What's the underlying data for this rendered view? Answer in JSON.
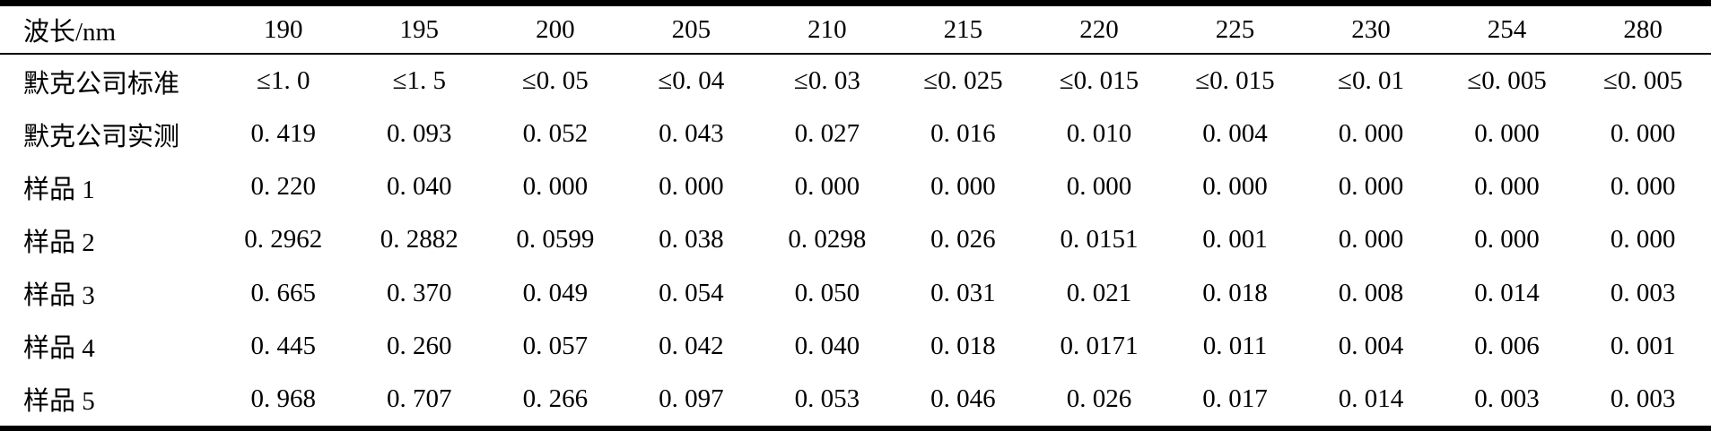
{
  "colors": {
    "background": "#ffffff",
    "text": "#000000",
    "rule": "#000000"
  },
  "table": {
    "header": {
      "label": "波长/nm",
      "wavelengths": [
        "190",
        "195",
        "200",
        "205",
        "210",
        "215",
        "220",
        "225",
        "230",
        "254",
        "280"
      ]
    },
    "rows": [
      {
        "label": "默克公司标准",
        "values": [
          "≤1. 0",
          "≤1. 5",
          "≤0. 05",
          "≤0. 04",
          "≤0. 03",
          "≤0. 025",
          "≤0. 015",
          "≤0. 015",
          "≤0. 01",
          "≤0. 005",
          "≤0. 005"
        ]
      },
      {
        "label": "默克公司实测",
        "values": [
          "0. 419",
          "0. 093",
          "0. 052",
          "0. 043",
          "0. 027",
          "0. 016",
          "0. 010",
          "0. 004",
          "0. 000",
          "0. 000",
          "0. 000"
        ]
      },
      {
        "label": "样品 1",
        "values": [
          "0. 220",
          "0. 040",
          "0. 000",
          "0. 000",
          "0. 000",
          "0. 000",
          "0. 000",
          "0. 000",
          "0. 000",
          "0. 000",
          "0. 000"
        ]
      },
      {
        "label": "样品 2",
        "values": [
          "0. 2962",
          "0. 2882",
          "0. 0599",
          "0. 038",
          "0. 0298",
          "0. 026",
          "0. 0151",
          "0. 001",
          "0. 000",
          "0. 000",
          "0. 000"
        ]
      },
      {
        "label": "样品 3",
        "values": [
          "0. 665",
          "0. 370",
          "0. 049",
          "0. 054",
          "0. 050",
          "0. 031",
          "0. 021",
          "0. 018",
          "0. 008",
          "0. 014",
          "0. 003"
        ]
      },
      {
        "label": "样品 4",
        "values": [
          "0. 445",
          "0. 260",
          "0. 057",
          "0. 042",
          "0. 040",
          "0. 018",
          "0. 0171",
          "0. 011",
          "0. 004",
          "0. 006",
          "0. 001"
        ]
      },
      {
        "label": "样品 5",
        "values": [
          "0. 968",
          "0. 707",
          "0. 266",
          "0. 097",
          "0. 053",
          "0. 046",
          "0. 026",
          "0. 017",
          "0. 014",
          "0. 003",
          "0. 003"
        ]
      }
    ]
  }
}
